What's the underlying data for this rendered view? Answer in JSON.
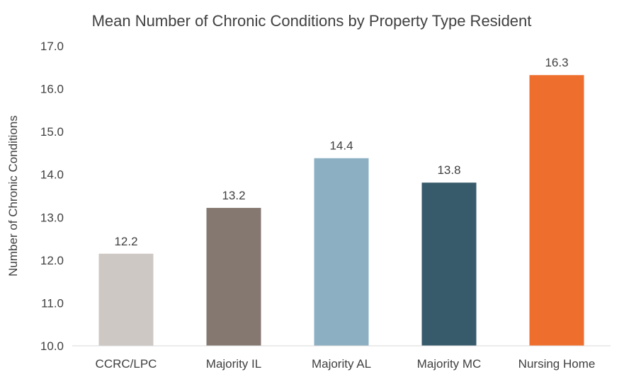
{
  "chart_data": {
    "type": "bar",
    "title": "Mean Number of Chronic Conditions by Property Type Resident",
    "ylabel": "Number of Chronic Conditions",
    "xlabel": "",
    "ylim": [
      10.0,
      17.0
    ],
    "yticks": [
      "10.0",
      "11.0",
      "12.0",
      "13.0",
      "14.0",
      "15.0",
      "16.0",
      "17.0"
    ],
    "grid": false,
    "categories": [
      "CCRC/LPC",
      "Majority IL",
      "Majority AL",
      "Majority MC",
      "Nursing Home"
    ],
    "values": [
      12.15,
      13.22,
      14.38,
      13.81,
      16.32
    ],
    "data_labels": [
      "12.2",
      "13.2",
      "14.4",
      "13.8",
      "16.3"
    ],
    "colors": [
      "#cdc8c3",
      "#857870",
      "#8cb0c2",
      "#385b6b",
      "#ee6f2d"
    ]
  }
}
